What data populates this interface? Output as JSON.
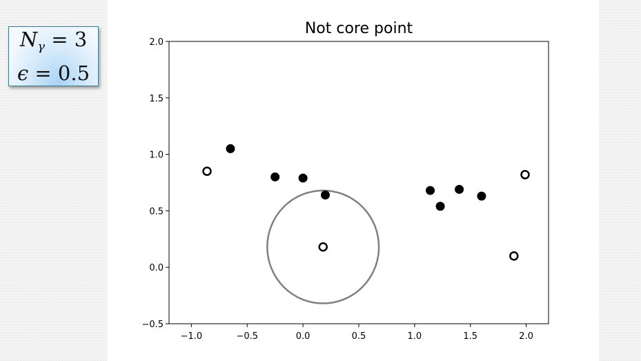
{
  "params": {
    "n_symbol": "N",
    "n_subscript": "γ",
    "n_value": "= 3",
    "eps_symbol": "ϵ",
    "eps_value": "= 0.5"
  },
  "chart_data": {
    "type": "scatter",
    "title": "Not core point",
    "xlabel": "",
    "ylabel": "",
    "xlim": [
      -1.2,
      2.2
    ],
    "ylim": [
      -0.5,
      2.0
    ],
    "xticks": [
      -1.0,
      -0.5,
      0.0,
      0.5,
      1.0,
      1.5,
      2.0
    ],
    "xtick_labels": [
      "−1.0",
      "−0.5",
      "0.0",
      "0.5",
      "1.0",
      "1.5",
      "2.0"
    ],
    "yticks": [
      -0.5,
      0.0,
      0.5,
      1.0,
      1.5,
      2.0
    ],
    "ytick_labels": [
      "−0.5",
      "0.0",
      "0.5",
      "1.0",
      "1.5",
      "2.0"
    ],
    "grid": false,
    "series": [
      {
        "marker": "filled",
        "color": "#000000",
        "points": [
          {
            "x": -0.65,
            "y": 1.05
          },
          {
            "x": -0.25,
            "y": 0.8
          },
          {
            "x": 0.0,
            "y": 0.79
          },
          {
            "x": 0.2,
            "y": 0.64
          },
          {
            "x": 1.14,
            "y": 0.68
          },
          {
            "x": 1.23,
            "y": 0.54
          },
          {
            "x": 1.4,
            "y": 0.69
          },
          {
            "x": 1.6,
            "y": 0.63
          }
        ]
      },
      {
        "marker": "hollow",
        "color": "#000000",
        "points": [
          {
            "x": -0.86,
            "y": 0.85
          },
          {
            "x": 0.18,
            "y": 0.18
          },
          {
            "x": 1.89,
            "y": 0.1
          },
          {
            "x": 1.99,
            "y": 0.82
          }
        ]
      }
    ],
    "annotations": [
      {
        "type": "circle",
        "center": {
          "x": 0.18,
          "y": 0.18
        },
        "radius": 0.5,
        "color": "#808080"
      }
    ]
  }
}
